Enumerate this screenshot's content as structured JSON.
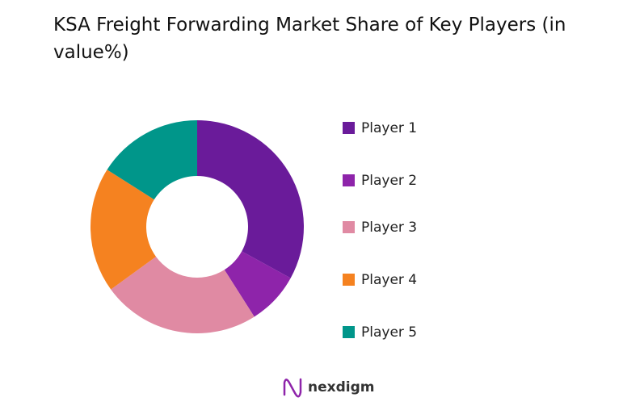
{
  "chart_data": {
    "type": "donut",
    "title": "KSA Freight Forwarding Market Share of Key Players (in value%)",
    "categories": [
      "Player 1",
      "Player 2",
      "Player 3",
      "Player 4",
      "Player 5"
    ],
    "values": [
      33,
      8,
      24,
      19,
      16
    ],
    "colors": [
      "#6a1b9a",
      "#8e24aa",
      "#e08aa3",
      "#f58220",
      "#00968a"
    ],
    "legend": "right"
  },
  "footer": {
    "logo_text": "nexdigm"
  }
}
